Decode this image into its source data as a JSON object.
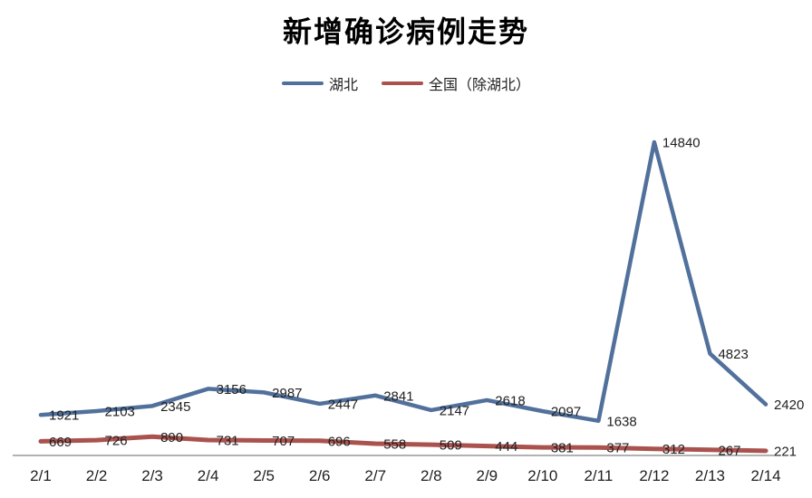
{
  "title": "新增确诊病例走势",
  "chart_data": {
    "type": "line",
    "title": "新增确诊病例走势",
    "categories": [
      "2/1",
      "2/2",
      "2/3",
      "2/4",
      "2/5",
      "2/6",
      "2/7",
      "2/8",
      "2/9",
      "2/10",
      "2/11",
      "2/12",
      "2/13",
      "2/14"
    ],
    "series": [
      {
        "name": "湖北",
        "color": "#51719c",
        "values": [
          1921,
          2103,
          2345,
          3156,
          2987,
          2447,
          2841,
          2147,
          2618,
          2097,
          1638,
          14840,
          4823,
          2420
        ]
      },
      {
        "name": "全国（除湖北）",
        "color": "#aa524e",
        "values": [
          669,
          726,
          890,
          731,
          707,
          696,
          558,
          509,
          444,
          381,
          377,
          312,
          267,
          221
        ]
      }
    ],
    "xlabel": "",
    "ylabel": "",
    "ylim": [
      0,
      16000
    ],
    "grid": false,
    "legend_position": "top",
    "data_labels": true,
    "label_color": "#1f1f1f",
    "axis_color": "#666666",
    "tick_color": "#1f1f1f"
  }
}
